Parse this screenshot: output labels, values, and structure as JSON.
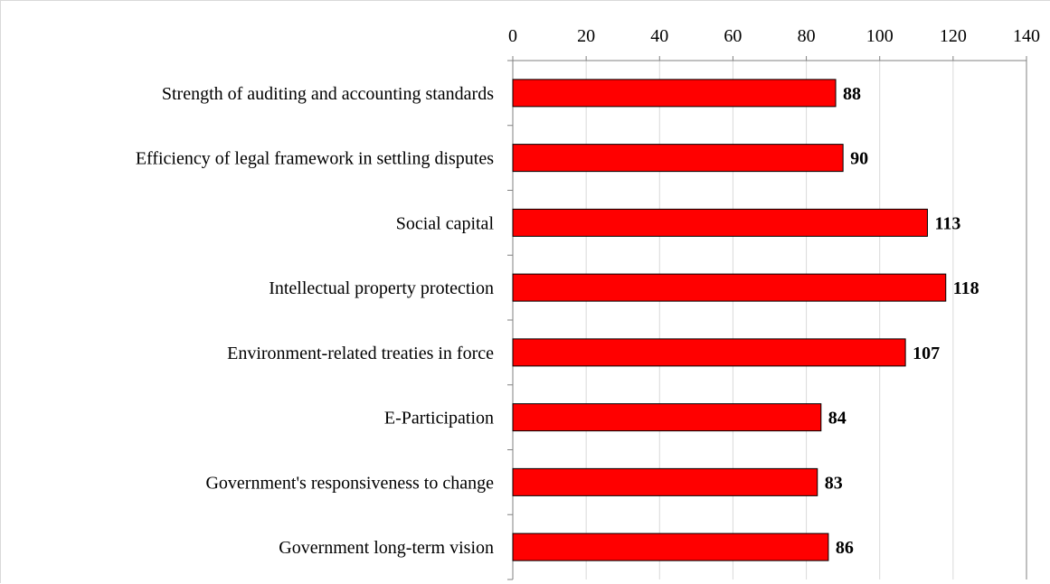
{
  "chart_data": {
    "type": "bar",
    "orientation": "horizontal",
    "categories": [
      "Strength of auditing and accounting standards",
      "Efficiency of legal framework in settling disputes",
      "Social capital",
      "Intellectual property protection",
      "Environment-related treaties in force",
      "E-Participation",
      "Government's responsiveness to change",
      "Government long-term vision"
    ],
    "values": [
      88,
      90,
      113,
      118,
      107,
      84,
      83,
      86
    ],
    "data_labels": [
      "88",
      "90",
      "113",
      "118",
      "107",
      "84",
      "83",
      "86"
    ],
    "title": "",
    "xlabel": "",
    "ylabel": "",
    "xlim": [
      0,
      140
    ],
    "x_ticks": [
      0,
      20,
      40,
      60,
      80,
      100,
      120,
      140
    ],
    "x_tick_labels": [
      "0",
      "20",
      "40",
      "60",
      "80",
      "100",
      "120",
      "140"
    ],
    "x_axis_position": "top",
    "grid": "vertical",
    "legend": "none",
    "colors": {
      "bar_fill": "#ff0000",
      "bar_stroke": "#000000",
      "grid": "#d9d9d9",
      "axis": "#808080"
    }
  }
}
